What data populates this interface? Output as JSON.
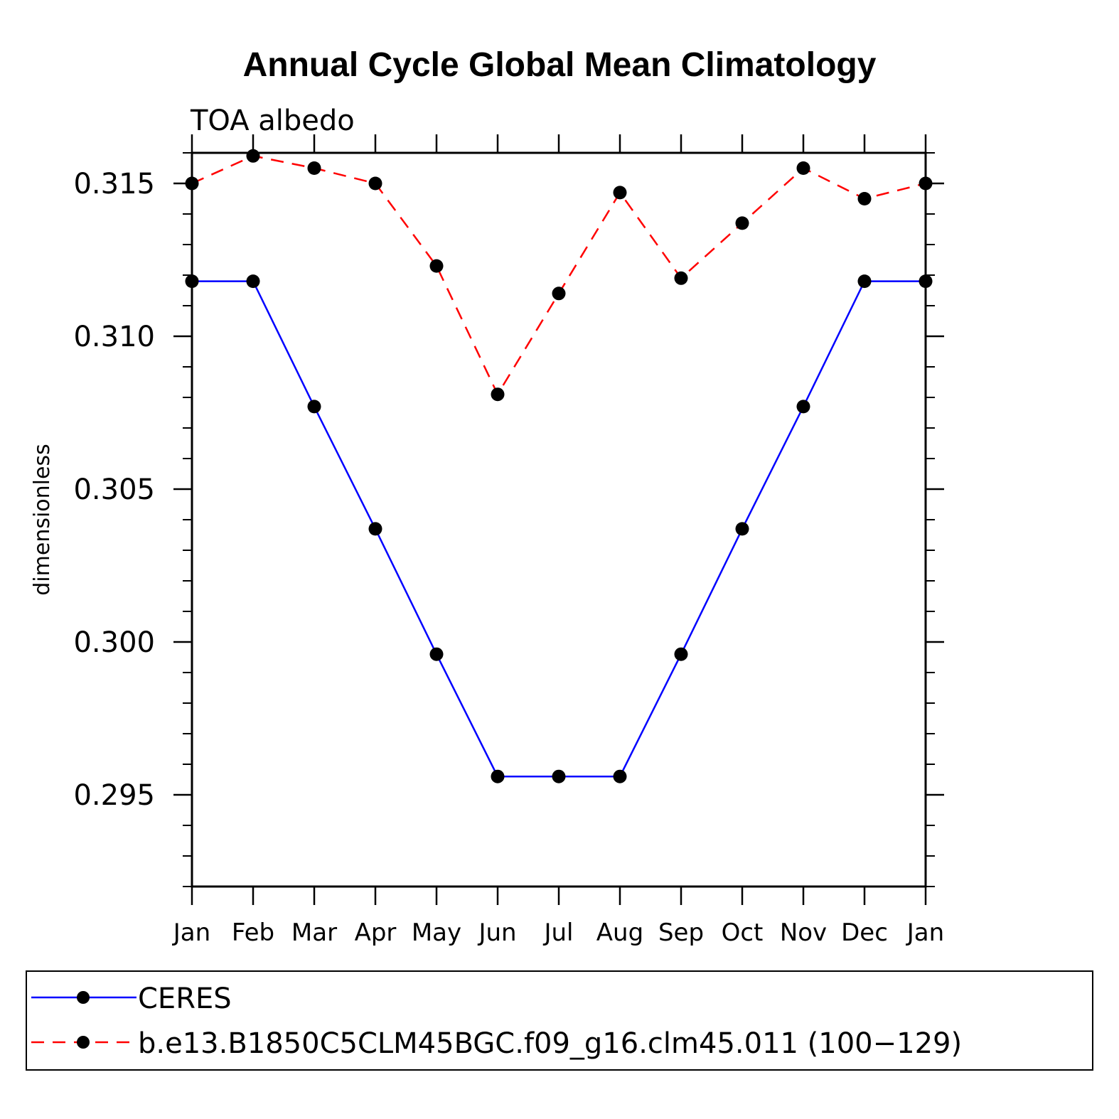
{
  "chart_data": {
    "type": "line",
    "title": "Annual Cycle Global Mean Climatology",
    "subtitle": "TOA albedo",
    "ylabel": "dimensionless",
    "xlabel": "",
    "categories": [
      "Jan",
      "Feb",
      "Mar",
      "Apr",
      "May",
      "Jun",
      "Jul",
      "Aug",
      "Sep",
      "Oct",
      "Nov",
      "Dec",
      "Jan"
    ],
    "ylim": [
      0.292,
      0.316
    ],
    "yticks": [
      0.295,
      0.3,
      0.305,
      0.31,
      0.315
    ],
    "ytick_labels": [
      "0.295",
      "0.300",
      "0.305",
      "0.310",
      "0.315"
    ],
    "y_minor_step": 0.001,
    "grid": false,
    "legend_position": "bottom",
    "series": [
      {
        "name": "CERES",
        "color": "#0000ff",
        "line_style": "solid",
        "marker": "filled-circle",
        "values": [
          0.3118,
          0.3118,
          0.3077,
          0.3037,
          0.2996,
          0.2956,
          0.2956,
          0.2956,
          0.2996,
          0.3037,
          0.3077,
          0.3118,
          0.3118
        ]
      },
      {
        "name": "b.e13.B1850C5CLM45BGC.f09_g16.clm45.011 (100−129)",
        "color": "#ff0000",
        "line_style": "dashed",
        "marker": "filled-circle",
        "values": [
          0.315,
          0.3159,
          0.3155,
          0.315,
          0.3123,
          0.3081,
          0.3114,
          0.3147,
          0.3119,
          0.3137,
          0.3155,
          0.3145,
          0.315
        ]
      }
    ]
  }
}
